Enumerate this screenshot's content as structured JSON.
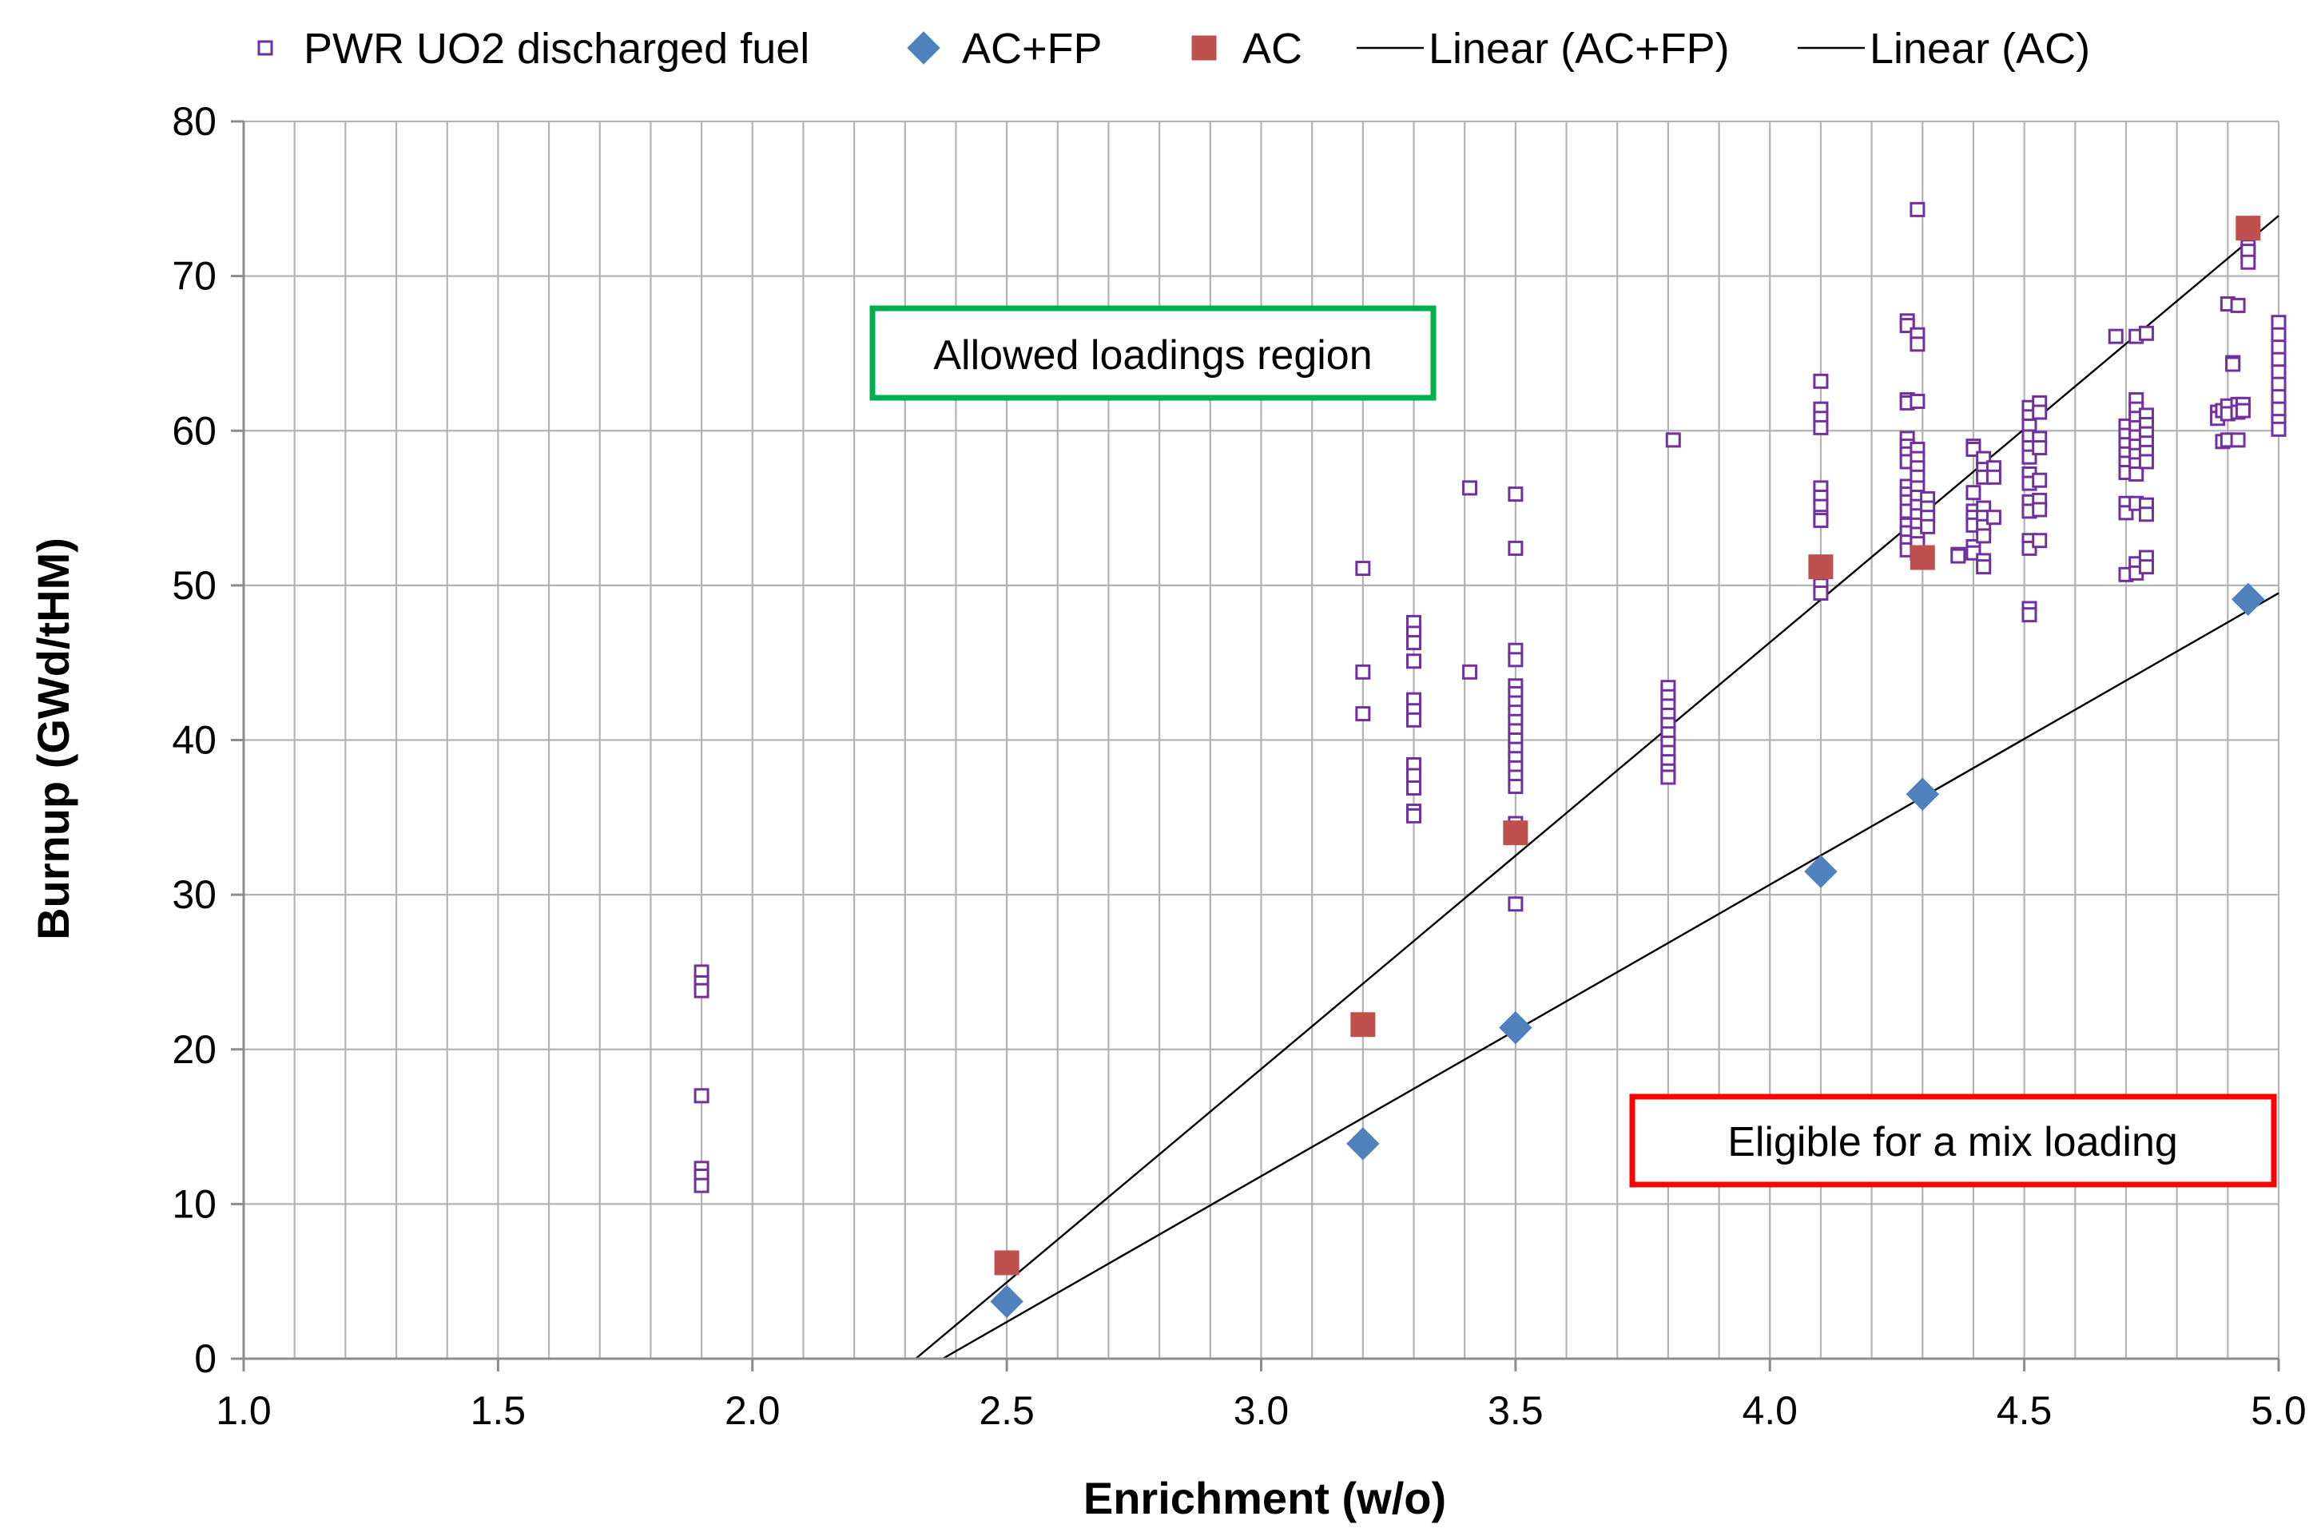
{
  "chart_data": {
    "type": "scatter",
    "title": "",
    "xlabel": "Enrichment (w/o)",
    "ylabel": "Burnup (GWd/tHM)",
    "xlim": [
      1.0,
      5.0
    ],
    "ylim": [
      0,
      80
    ],
    "x_ticks": [
      "1.0",
      "1.5",
      "2.0",
      "2.5",
      "3.0",
      "3.5",
      "4.0",
      "4.5",
      "5.0"
    ],
    "y_ticks": [
      "0",
      "10",
      "20",
      "30",
      "40",
      "50",
      "60",
      "70",
      "80"
    ],
    "x_tick_values": [
      1.0,
      1.5,
      2.0,
      2.5,
      3.0,
      3.5,
      4.0,
      4.5,
      5.0
    ],
    "y_tick_values": [
      0,
      10,
      20,
      30,
      40,
      50,
      60,
      70,
      80
    ],
    "grid": true,
    "x_grid_step": 0.1,
    "legend_position": "top",
    "legend": [
      {
        "label": "PWR UO2 discharged fuel",
        "marker": "open-square",
        "color": "#7030A0"
      },
      {
        "label": "AC+FP",
        "marker": "diamond",
        "color": "#4F81BD"
      },
      {
        "label": "AC",
        "marker": "square",
        "color": "#C0504D"
      },
      {
        "label": "Linear (AC+FP)",
        "marker": "line",
        "color": "#000000"
      },
      {
        "label": "Linear (AC)",
        "marker": "line",
        "color": "#000000"
      }
    ],
    "series": [
      {
        "name": "PWR UO2 discharged fuel",
        "marker": "open-square",
        "color": "#7030A0",
        "points": [
          [
            1.9,
            25.0
          ],
          [
            1.9,
            24.3
          ],
          [
            1.9,
            23.8
          ],
          [
            1.9,
            17.0
          ],
          [
            1.9,
            12.3
          ],
          [
            1.9,
            11.8
          ],
          [
            1.9,
            11.2
          ],
          [
            3.2,
            51.1
          ],
          [
            3.2,
            44.4
          ],
          [
            3.2,
            41.7
          ],
          [
            3.3,
            47.6
          ],
          [
            3.3,
            46.9
          ],
          [
            3.3,
            46.3
          ],
          [
            3.3,
            45.1
          ],
          [
            3.3,
            42.6
          ],
          [
            3.3,
            41.9
          ],
          [
            3.3,
            41.3
          ],
          [
            3.3,
            38.4
          ],
          [
            3.3,
            37.7
          ],
          [
            3.3,
            36.9
          ],
          [
            3.3,
            35.4
          ],
          [
            3.3,
            35.1
          ],
          [
            3.41,
            56.3
          ],
          [
            3.41,
            44.4
          ],
          [
            3.5,
            55.9
          ],
          [
            3.5,
            52.4
          ],
          [
            3.5,
            45.8
          ],
          [
            3.5,
            45.2
          ],
          [
            3.5,
            43.5
          ],
          [
            3.5,
            43.0
          ],
          [
            3.5,
            42.4
          ],
          [
            3.5,
            41.8
          ],
          [
            3.5,
            41.2
          ],
          [
            3.5,
            40.6
          ],
          [
            3.5,
            40.0
          ],
          [
            3.5,
            39.4
          ],
          [
            3.5,
            38.8
          ],
          [
            3.5,
            38.2
          ],
          [
            3.5,
            37.6
          ],
          [
            3.5,
            37.0
          ],
          [
            3.5,
            34.6
          ],
          [
            3.5,
            34.1
          ],
          [
            3.5,
            29.4
          ],
          [
            3.8,
            43.4
          ],
          [
            3.8,
            42.8
          ],
          [
            3.8,
            42.2
          ],
          [
            3.8,
            41.6
          ],
          [
            3.8,
            41.0
          ],
          [
            3.8,
            40.4
          ],
          [
            3.8,
            39.8
          ],
          [
            3.8,
            39.2
          ],
          [
            3.8,
            38.6
          ],
          [
            3.8,
            38.0
          ],
          [
            3.8,
            37.6
          ],
          [
            3.81,
            59.4
          ],
          [
            4.1,
            63.2
          ],
          [
            4.1,
            61.4
          ],
          [
            4.1,
            60.8
          ],
          [
            4.1,
            60.2
          ],
          [
            4.1,
            56.3
          ],
          [
            4.1,
            55.7
          ],
          [
            4.1,
            55.1
          ],
          [
            4.1,
            54.4
          ],
          [
            4.1,
            54.2
          ],
          [
            4.1,
            51.5
          ],
          [
            4.1,
            50.0
          ],
          [
            4.1,
            49.5
          ],
          [
            4.27,
            67.1
          ],
          [
            4.27,
            66.8
          ],
          [
            4.27,
            62.0
          ],
          [
            4.27,
            61.8
          ],
          [
            4.27,
            59.5
          ],
          [
            4.27,
            59.0
          ],
          [
            4.27,
            58.5
          ],
          [
            4.27,
            58.0
          ],
          [
            4.27,
            56.4
          ],
          [
            4.27,
            55.9
          ],
          [
            4.27,
            55.4
          ],
          [
            4.27,
            54.8
          ],
          [
            4.27,
            53.9
          ],
          [
            4.27,
            53.4
          ],
          [
            4.27,
            52.8
          ],
          [
            4.27,
            52.3
          ],
          [
            4.29,
            74.3
          ],
          [
            4.29,
            66.2
          ],
          [
            4.29,
            65.6
          ],
          [
            4.29,
            61.9
          ],
          [
            4.29,
            58.8
          ],
          [
            4.29,
            58.2
          ],
          [
            4.29,
            57.6
          ],
          [
            4.29,
            57.0
          ],
          [
            4.29,
            56.3
          ],
          [
            4.29,
            55.7
          ],
          [
            4.29,
            55.1
          ],
          [
            4.29,
            54.5
          ],
          [
            4.29,
            53.9
          ],
          [
            4.29,
            53.3
          ],
          [
            4.29,
            52.7
          ],
          [
            4.29,
            52.1
          ],
          [
            4.31,
            55.6
          ],
          [
            4.31,
            55.0
          ],
          [
            4.31,
            54.4
          ],
          [
            4.31,
            53.8
          ],
          [
            4.37,
            52.0
          ],
          [
            4.37,
            51.9
          ],
          [
            4.4,
            59.0
          ],
          [
            4.4,
            58.8
          ],
          [
            4.4,
            56.0
          ],
          [
            4.4,
            54.8
          ],
          [
            4.4,
            54.4
          ],
          [
            4.4,
            53.9
          ],
          [
            4.4,
            52.5
          ],
          [
            4.4,
            52.1
          ],
          [
            4.42,
            58.2
          ],
          [
            4.42,
            57.5
          ],
          [
            4.42,
            57.0
          ],
          [
            4.42,
            55.0
          ],
          [
            4.42,
            54.4
          ],
          [
            4.42,
            53.8
          ],
          [
            4.42,
            53.2
          ],
          [
            4.42,
            51.6
          ],
          [
            4.42,
            51.2
          ],
          [
            4.44,
            57.6
          ],
          [
            4.44,
            57.0
          ],
          [
            4.44,
            54.4
          ],
          [
            4.51,
            61.5
          ],
          [
            4.51,
            60.9
          ],
          [
            4.51,
            60.3
          ],
          [
            4.51,
            59.6
          ],
          [
            4.51,
            58.9
          ],
          [
            4.51,
            58.3
          ],
          [
            4.51,
            57.2
          ],
          [
            4.51,
            56.6
          ],
          [
            4.51,
            55.4
          ],
          [
            4.51,
            54.8
          ],
          [
            4.51,
            52.9
          ],
          [
            4.51,
            52.4
          ],
          [
            4.51,
            48.5
          ],
          [
            4.51,
            48.1
          ],
          [
            4.53,
            61.8
          ],
          [
            4.53,
            61.2
          ],
          [
            4.53,
            59.5
          ],
          [
            4.53,
            58.9
          ],
          [
            4.53,
            56.8
          ],
          [
            4.53,
            55.5
          ],
          [
            4.53,
            54.9
          ],
          [
            4.53,
            52.9
          ],
          [
            4.68,
            66.1
          ],
          [
            4.7,
            60.3
          ],
          [
            4.7,
            59.7
          ],
          [
            4.7,
            59.1
          ],
          [
            4.7,
            58.5
          ],
          [
            4.7,
            57.9
          ],
          [
            4.7,
            57.3
          ],
          [
            4.7,
            55.3
          ],
          [
            4.7,
            54.7
          ],
          [
            4.7,
            50.7
          ],
          [
            4.72,
            66.1
          ],
          [
            4.72,
            62.0
          ],
          [
            4.72,
            61.4
          ],
          [
            4.72,
            60.8
          ],
          [
            4.72,
            60.2
          ],
          [
            4.72,
            59.6
          ],
          [
            4.72,
            59.0
          ],
          [
            4.72,
            58.4
          ],
          [
            4.72,
            57.8
          ],
          [
            4.72,
            57.2
          ],
          [
            4.72,
            55.3
          ],
          [
            4.72,
            51.4
          ],
          [
            4.72,
            50.8
          ],
          [
            4.74,
            66.3
          ],
          [
            4.74,
            61.0
          ],
          [
            4.74,
            60.4
          ],
          [
            4.74,
            59.8
          ],
          [
            4.74,
            59.2
          ],
          [
            4.74,
            58.6
          ],
          [
            4.74,
            58.0
          ],
          [
            4.74,
            55.2
          ],
          [
            4.74,
            54.6
          ],
          [
            4.74,
            51.8
          ],
          [
            4.74,
            51.2
          ],
          [
            4.88,
            61.2
          ],
          [
            4.88,
            60.8
          ],
          [
            4.89,
            61.3
          ],
          [
            4.89,
            59.3
          ],
          [
            4.9,
            68.2
          ],
          [
            4.9,
            61.6
          ],
          [
            4.9,
            61.1
          ],
          [
            4.9,
            59.4
          ],
          [
            4.91,
            64.4
          ],
          [
            4.91,
            64.3
          ],
          [
            4.92,
            68.1
          ],
          [
            4.92,
            61.7
          ],
          [
            4.92,
            61.2
          ],
          [
            4.92,
            59.4
          ],
          [
            4.93,
            61.7
          ],
          [
            4.93,
            61.3
          ],
          [
            4.94,
            71.9
          ],
          [
            4.94,
            71.6
          ],
          [
            4.94,
            70.9
          ],
          [
            5.0,
            67.0
          ],
          [
            5.0,
            66.2
          ],
          [
            5.0,
            65.4
          ],
          [
            5.0,
            64.6
          ],
          [
            5.0,
            63.8
          ],
          [
            5.0,
            63.0
          ],
          [
            5.0,
            62.2
          ],
          [
            5.0,
            61.4
          ],
          [
            5.0,
            60.6
          ],
          [
            5.0,
            60.1
          ]
        ]
      },
      {
        "name": "AC+FP",
        "marker": "diamond",
        "color": "#4F81BD",
        "points": [
          [
            2.5,
            3.7
          ],
          [
            3.2,
            13.9
          ],
          [
            3.5,
            21.4
          ],
          [
            4.1,
            31.5
          ],
          [
            4.3,
            36.5
          ],
          [
            4.94,
            49.1
          ]
        ]
      },
      {
        "name": "AC",
        "marker": "square",
        "color": "#C0504D",
        "points": [
          [
            2.5,
            6.2
          ],
          [
            3.2,
            21.6
          ],
          [
            3.5,
            34.0
          ],
          [
            4.1,
            51.2
          ],
          [
            4.3,
            51.8
          ],
          [
            4.94,
            73.1
          ]
        ]
      },
      {
        "name": "Linear (AC+FP)",
        "marker": "line",
        "color": "#000000",
        "points": [
          [
            2.374,
            0
          ],
          [
            5.0,
            49.5
          ]
        ]
      },
      {
        "name": "Linear (AC)",
        "marker": "line",
        "color": "#000000",
        "points": [
          [
            2.321,
            0
          ],
          [
            5.0,
            73.9
          ]
        ]
      }
    ],
    "annotations": [
      {
        "text": "Allowed loadings region",
        "border_color": "#00B050"
      },
      {
        "text": "Eligible for a mix loading",
        "border_color": "#FF0000"
      }
    ]
  }
}
